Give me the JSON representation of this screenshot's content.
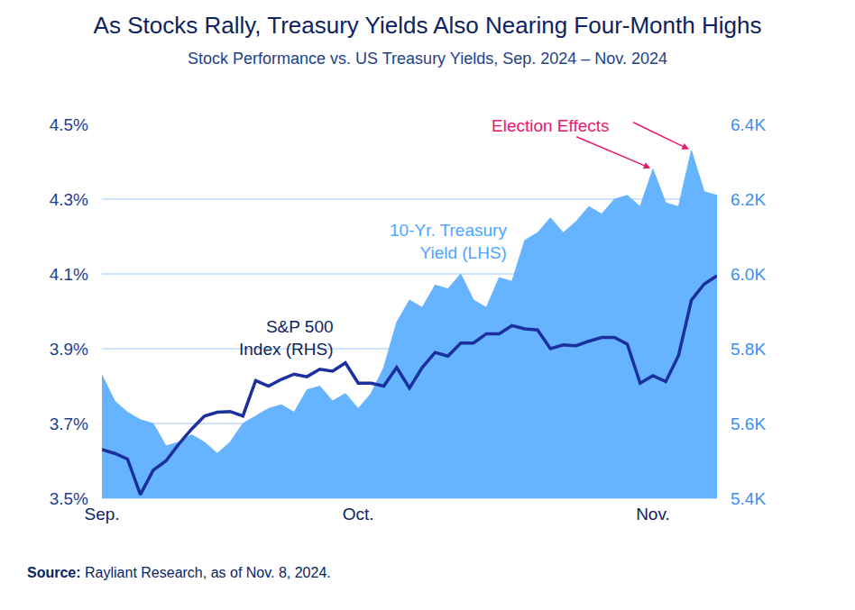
{
  "chart_data": {
    "type": "line",
    "title": "As Stocks Rally, Treasury Yields Also Nearing Four-Month Highs",
    "subtitle": "Stock Performance vs. US Treasury Yields, Sep. 2024 – Nov. 2024",
    "source": "Source: Rayliant Research, as of Nov. 8, 2024.",
    "categories": [
      "Sep.",
      null,
      null,
      null,
      null,
      null,
      null,
      null,
      null,
      null,
      null,
      null,
      null,
      null,
      null,
      null,
      null,
      null,
      null,
      null,
      "Oct.",
      null,
      null,
      null,
      null,
      null,
      null,
      null,
      null,
      null,
      null,
      null,
      null,
      null,
      null,
      null,
      null,
      null,
      null,
      null,
      null,
      null,
      null,
      "Nov.",
      null,
      null,
      null,
      null,
      null
    ],
    "series": [
      {
        "name": "10-Yr. Treasury\nYield (LHS)",
        "type": "area",
        "color": "#66b3ff",
        "values": [
          3.83,
          3.76,
          3.73,
          3.71,
          3.7,
          3.64,
          3.65,
          3.67,
          3.65,
          3.62,
          3.65,
          3.7,
          3.72,
          3.74,
          3.75,
          3.73,
          3.79,
          3.8,
          3.76,
          3.78,
          3.74,
          3.78,
          3.85,
          3.97,
          4.03,
          4.01,
          4.07,
          4.06,
          4.1,
          4.03,
          4.01,
          4.09,
          4.08,
          4.19,
          4.21,
          4.25,
          4.21,
          4.24,
          4.28,
          4.26,
          4.3,
          4.31,
          4.28,
          4.38,
          4.29,
          4.28,
          4.43,
          4.32,
          4.31
        ]
      },
      {
        "name": "S&P 500\nIndex (RHS)",
        "type": "line",
        "axis": "y2",
        "color": "#1b2f9e",
        "values": [
          5530,
          5520,
          5505,
          5410,
          5475,
          5500,
          5545,
          5585,
          5620,
          5630,
          5632,
          5620,
          5715,
          5700,
          5718,
          5732,
          5725,
          5745,
          5740,
          5762,
          5708,
          5708,
          5700,
          5750,
          5695,
          5750,
          5790,
          5780,
          5815,
          5815,
          5840,
          5840,
          5862,
          5853,
          5850,
          5800,
          5810,
          5808,
          5820,
          5830,
          5830,
          5812,
          5708,
          5728,
          5712,
          5782,
          5930,
          5973,
          5995
        ]
      }
    ],
    "ylim": [
      3.5,
      4.5
    ],
    "yticks": [
      {
        "value": 3.5,
        "label": "3.5%"
      },
      {
        "value": 3.7,
        "label": "3.7%"
      },
      {
        "value": 3.9,
        "label": "3.9%"
      },
      {
        "value": 4.1,
        "label": "4.1%"
      },
      {
        "value": 4.3,
        "label": "4.3%"
      },
      {
        "value": 4.5,
        "label": "4.5%"
      }
    ],
    "y2lim": [
      5400,
      6400
    ],
    "y2ticks": [
      {
        "value": 5400,
        "label": "5.4K"
      },
      {
        "value": 5600,
        "label": "5.6K"
      },
      {
        "value": 5800,
        "label": "5.8K"
      },
      {
        "value": 6000,
        "label": "6.0K"
      },
      {
        "value": 6200,
        "label": "6.2K"
      },
      {
        "value": 6400,
        "label": "6.4K"
      }
    ],
    "annotations": [
      {
        "text": "Election Effects",
        "color": "#e8186e"
      }
    ],
    "grid": true
  }
}
